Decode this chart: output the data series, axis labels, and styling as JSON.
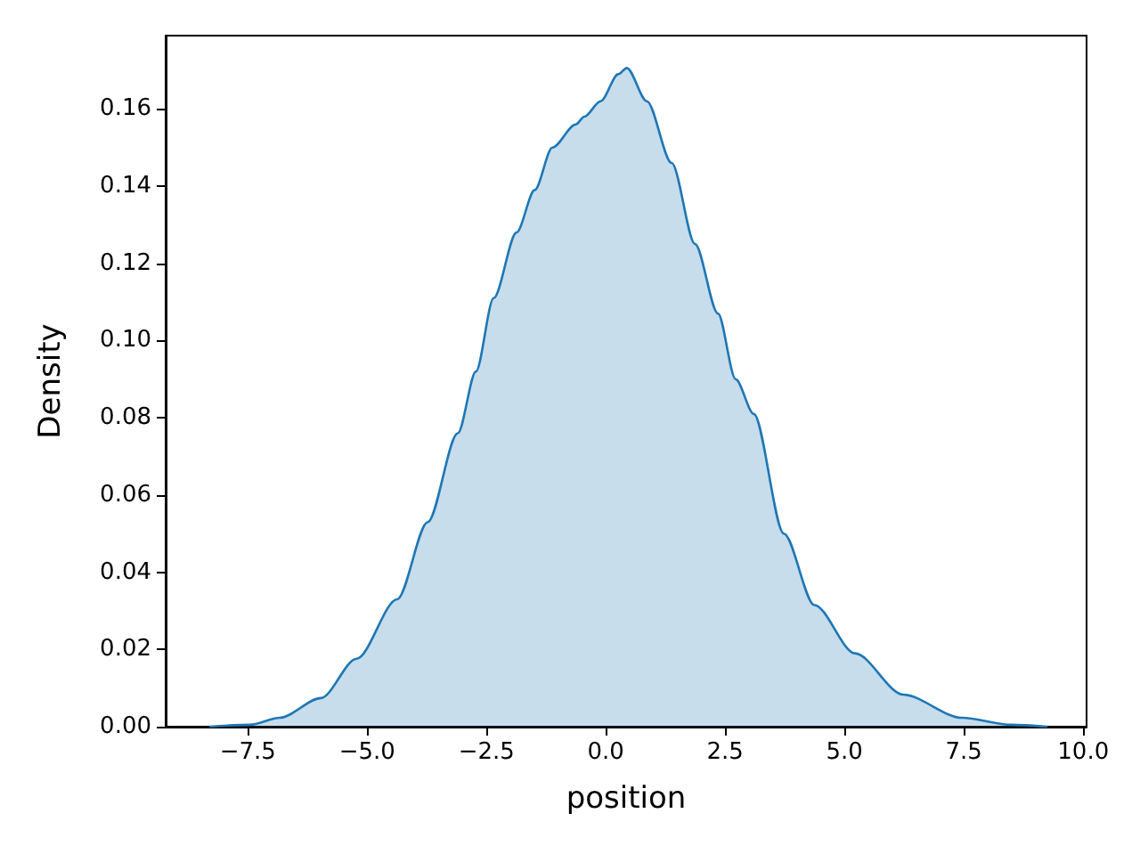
{
  "chart_data": {
    "type": "area",
    "xlabel": "position",
    "ylabel": "Density",
    "color": "#1f77b4",
    "x": [
      -8.3,
      -7.46,
      -6.83,
      -5.97,
      -5.22,
      -4.37,
      -3.73,
      -3.1,
      -2.72,
      -2.35,
      -1.87,
      -1.49,
      -1.12,
      -0.63,
      -0.45,
      -0.11,
      0.26,
      0.44,
      0.86,
      1.38,
      1.87,
      2.35,
      2.72,
      3.1,
      3.73,
      4.37,
      5.22,
      6.23,
      7.46,
      8.5,
      9.25
    ],
    "values": [
      0,
      0.0005,
      0.0023,
      0.0074,
      0.0176,
      0.033,
      0.053,
      0.076,
      0.092,
      0.111,
      0.128,
      0.139,
      0.15,
      0.156,
      0.158,
      0.162,
      0.169,
      0.1706,
      0.162,
      0.146,
      0.125,
      0.107,
      0.09,
      0.081,
      0.05,
      0.0315,
      0.019,
      0.0083,
      0.0023,
      0.0005,
      0
    ],
    "xlim": [
      -9.22,
      10.07
    ],
    "ylim": [
      0,
      0.179
    ],
    "xticks": [
      {
        "value": -7.5,
        "label": "−7.5"
      },
      {
        "value": -5,
        "label": "−5.0"
      },
      {
        "value": -2.5,
        "label": "−2.5"
      },
      {
        "value": 0,
        "label": "0.0"
      },
      {
        "value": 2.5,
        "label": "2.5"
      },
      {
        "value": 5,
        "label": "5.0"
      },
      {
        "value": 7.5,
        "label": "7.5"
      },
      {
        "value": 10,
        "label": "10.0"
      }
    ],
    "yticks": [
      {
        "value": 0,
        "label": "0.00"
      },
      {
        "value": 0.02,
        "label": "0.02"
      },
      {
        "value": 0.04,
        "label": "0.04"
      },
      {
        "value": 0.06,
        "label": "0.06"
      },
      {
        "value": 0.08,
        "label": "0.08"
      },
      {
        "value": 0.1,
        "label": "0.10"
      },
      {
        "value": 0.12,
        "label": "0.12"
      },
      {
        "value": 0.14,
        "label": "0.14"
      },
      {
        "value": 0.16,
        "label": "0.16"
      }
    ]
  }
}
